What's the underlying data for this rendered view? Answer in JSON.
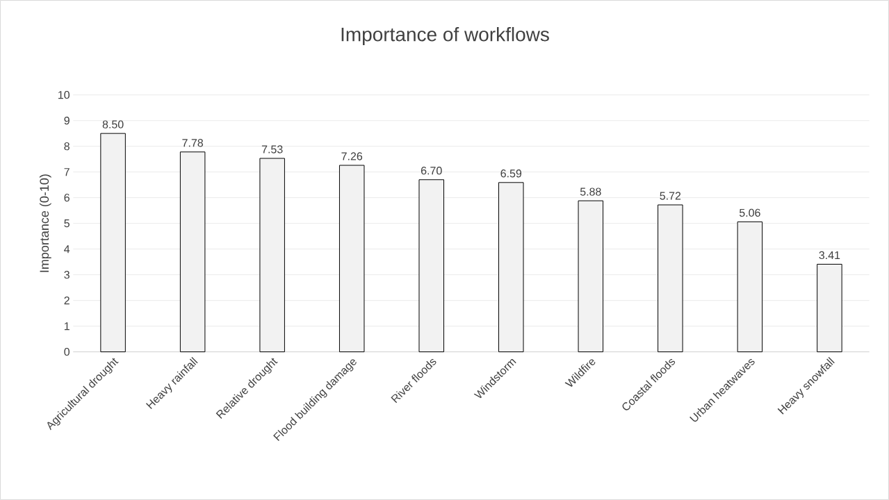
{
  "chart_data": {
    "type": "bar",
    "title": "Importance of workflows",
    "ylabel": "Importance (0-10)",
    "categories": [
      "Agricultural drought",
      "Heavy rainfall",
      "Relative drought",
      "Flood building damage",
      "River floods",
      "Windstorm",
      "Wildfire",
      "Coastal floods",
      "Urban heatwaves",
      "Heavy snowfall"
    ],
    "values": [
      8.5,
      7.78,
      7.53,
      7.26,
      6.7,
      6.59,
      5.88,
      5.72,
      5.06,
      3.41
    ],
    "value_labels": [
      "8.50",
      "7.78",
      "7.53",
      "7.26",
      "6.70",
      "6.59",
      "5.88",
      "5.72",
      "5.06",
      "3.41"
    ],
    "color": "#f2f2f2",
    "ylim": [
      0,
      10
    ],
    "yticks": [
      0,
      1,
      2,
      3,
      4,
      5,
      6,
      7,
      8,
      9,
      10
    ],
    "grid": "y"
  }
}
